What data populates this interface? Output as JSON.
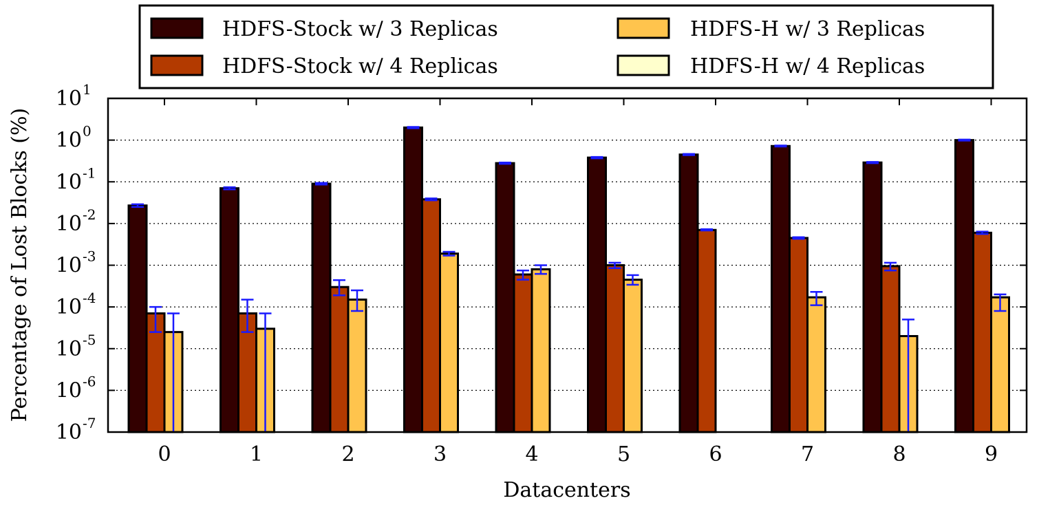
{
  "chart_data": {
    "type": "bar",
    "xlabel": "Datacenters",
    "ylabel": "Percentage of Lost Blocks (%)",
    "yscale": "log",
    "ylim": [
      1e-07,
      10
    ],
    "ytick_values": [
      1e-07,
      1e-06,
      1e-05,
      0.0001,
      0.001,
      0.01,
      0.1,
      1,
      10
    ],
    "ytick_labels": [
      {
        "base": "10",
        "exp": "-7"
      },
      {
        "base": "10",
        "exp": "-6"
      },
      {
        "base": "10",
        "exp": "-5"
      },
      {
        "base": "10",
        "exp": "-4"
      },
      {
        "base": "10",
        "exp": "-3"
      },
      {
        "base": "10",
        "exp": "-2"
      },
      {
        "base": "10",
        "exp": "-1"
      },
      {
        "base": "10",
        "exp": "0"
      },
      {
        "base": "10",
        "exp": "1"
      }
    ],
    "grid": "horizontal dotted",
    "legend_position": "top (above plot)",
    "categories": [
      "0",
      "1",
      "2",
      "3",
      "4",
      "5",
      "6",
      "7",
      "8",
      "9"
    ],
    "series": [
      {
        "name": "HDFS-Stock w/ 3 Replicas",
        "color": "#330000",
        "values": [
          0.027,
          0.07,
          0.09,
          2.0,
          0.28,
          0.38,
          0.45,
          0.72,
          0.29,
          1.0
        ],
        "err_low": [
          0.025,
          0.066,
          0.086,
          1.93,
          0.27,
          0.365,
          0.435,
          0.7,
          0.28,
          0.97
        ],
        "err_high": [
          0.029,
          0.074,
          0.094,
          2.07,
          0.29,
          0.395,
          0.465,
          0.74,
          0.3,
          1.03
        ]
      },
      {
        "name": "HDFS-Stock w/ 4 Replicas",
        "color": "#b33a00",
        "values": [
          7e-05,
          7e-05,
          0.0003,
          0.038,
          0.0006,
          0.001,
          0.007,
          0.0045,
          0.00095,
          0.006
        ],
        "err_low": [
          2.5e-05,
          2.5e-05,
          0.00019,
          0.036,
          0.00045,
          0.00085,
          0.0068,
          0.0043,
          0.00075,
          0.0056
        ],
        "err_high": [
          0.0001,
          0.00015,
          0.00044,
          0.04,
          0.00075,
          0.00115,
          0.0073,
          0.0047,
          0.00115,
          0.0064
        ]
      },
      {
        "name": "HDFS-H w/ 3 Replicas",
        "color": "#ffc44d",
        "values": [
          2.5e-05,
          3e-05,
          0.00015,
          0.0019,
          0.0008,
          0.00045,
          null,
          0.00017,
          2e-05,
          0.00017
        ],
        "err_low": [
          1e-07,
          1e-07,
          8e-05,
          0.0017,
          0.00062,
          0.00034,
          null,
          0.00011,
          1e-07,
          8e-05
        ],
        "err_high": [
          7e-05,
          7e-05,
          0.00025,
          0.0021,
          0.001,
          0.00058,
          null,
          0.00023,
          5e-05,
          0.0002
        ]
      },
      {
        "name": "HDFS-H w/ 4 Replicas",
        "color": "#ffffcc",
        "values": [
          null,
          null,
          null,
          null,
          null,
          null,
          null,
          null,
          null,
          null
        ],
        "err_low": [
          null,
          null,
          null,
          null,
          null,
          null,
          null,
          null,
          null,
          null
        ],
        "err_high": [
          null,
          null,
          null,
          null,
          null,
          null,
          null,
          null,
          null,
          null
        ]
      }
    ],
    "error_bar_color": "#1a1aff"
  }
}
